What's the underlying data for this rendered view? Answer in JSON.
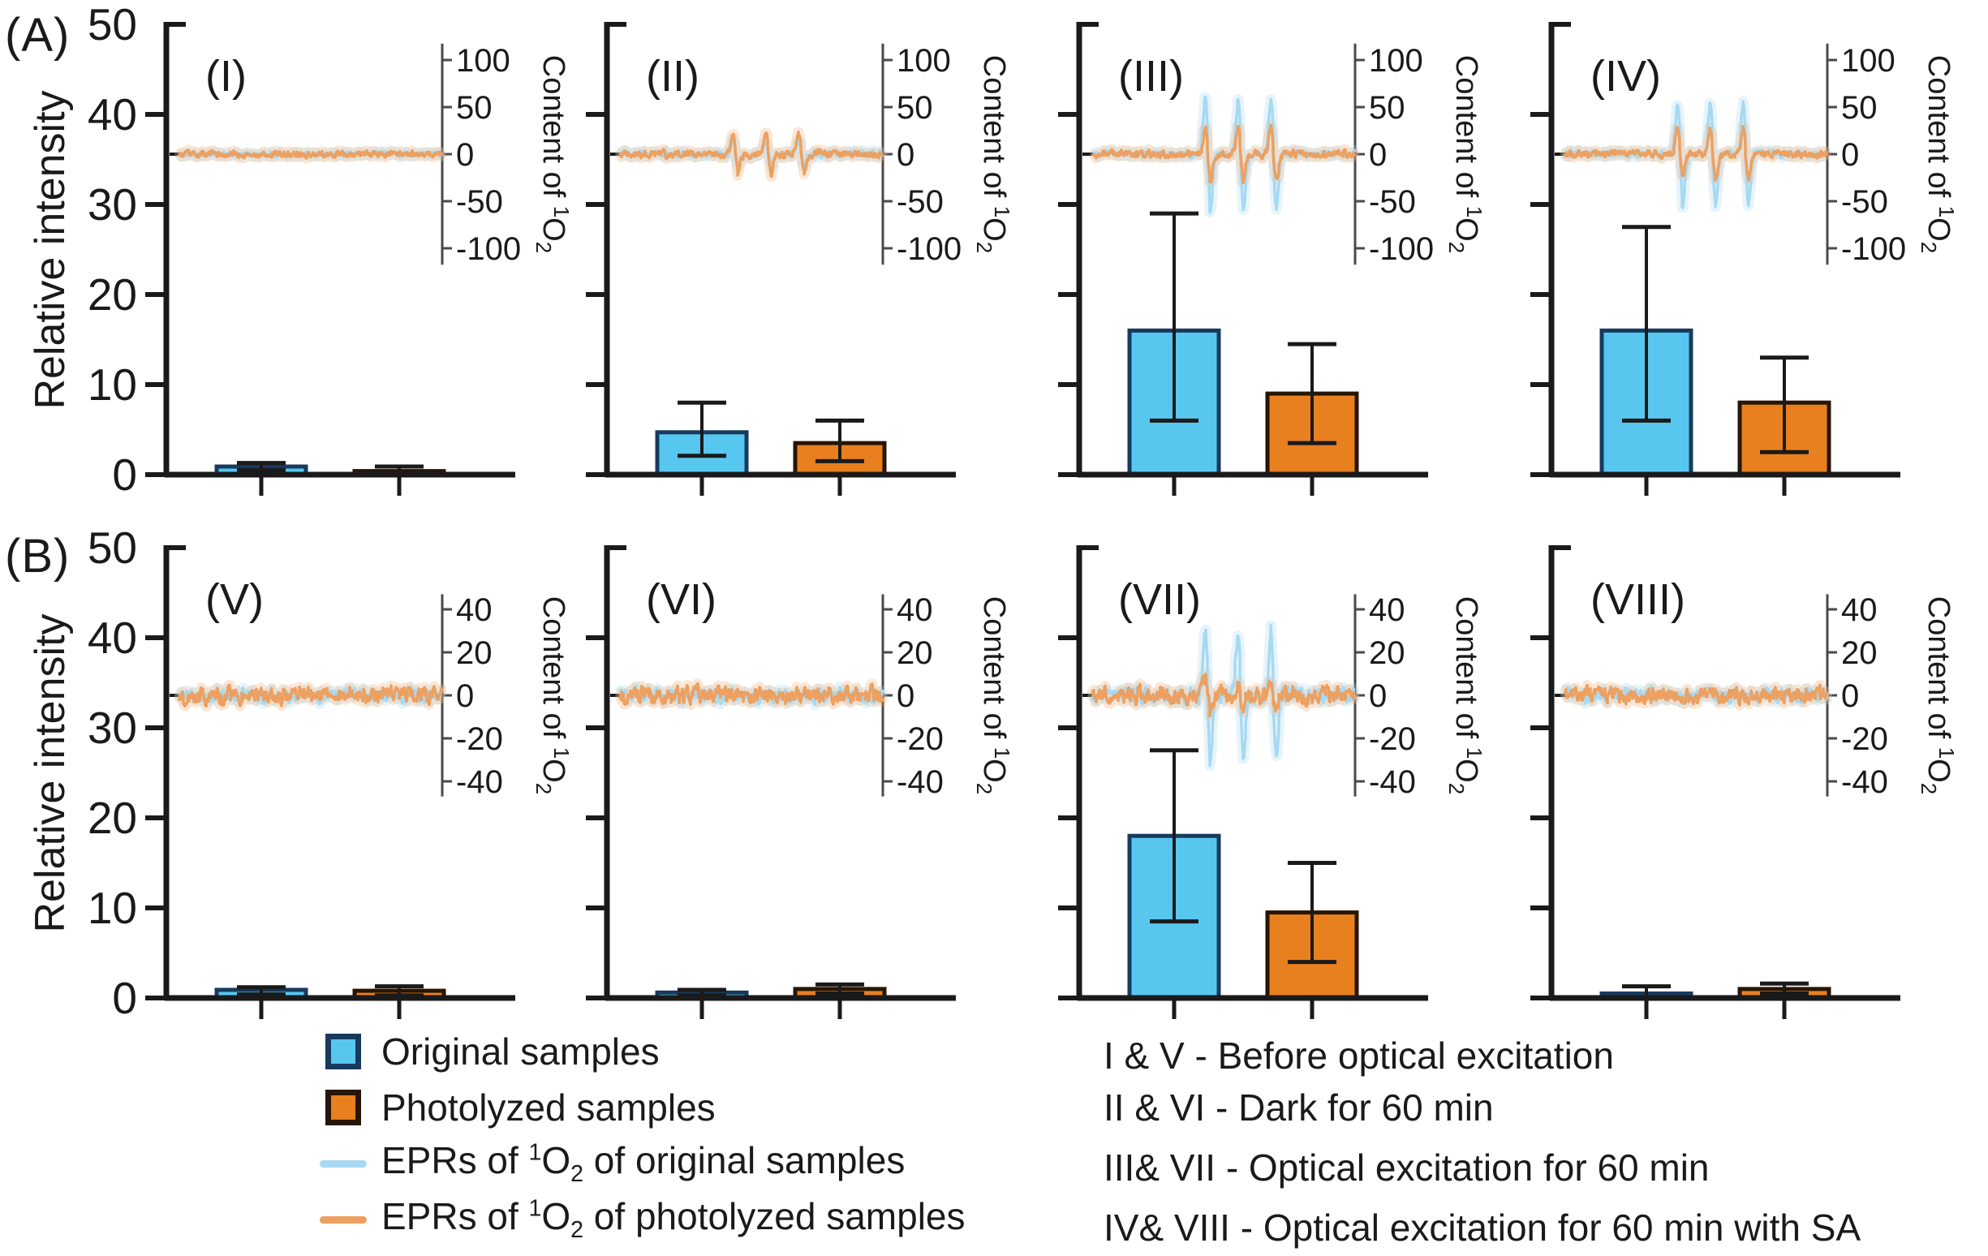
{
  "colors": {
    "bar_blue": "#57c7f0",
    "bar_blue_border": "#173a5e",
    "bar_orange": "#e8801f",
    "bar_orange_border": "#271505",
    "epr_blue": "#a7d9f2",
    "epr_orange": "#eda05f",
    "axis": "#1a1a1a",
    "inset_axis": "#4a4a4a"
  },
  "chart_data": {
    "type": "bar",
    "description": "Eight panels (I-VIII) of relative intensity bars with inset EPR spectra of singlet oxygen",
    "categories": [
      "Original samples",
      "Photolyzed samples"
    ],
    "ylabel": "Relative intensity",
    "inset_ylabel_text": "Content of ¹O₂",
    "inset_label_parts": {
      "pre": "Content of ",
      "sup": "1",
      "base": "O",
      "sub": "2"
    },
    "rows": [
      {
        "label": "(A)",
        "ylim": [
          0,
          50
        ],
        "yticks": [
          0,
          10,
          20,
          30,
          40,
          50
        ],
        "inset_axis": {
          "ticks": [
            100,
            50,
            0,
            -50,
            -100
          ],
          "step": 50
        },
        "panels": [
          {
            "id": "(I)",
            "bars": {
              "original": {
                "value": 0.9,
                "err_up": 0.4,
                "err_down": 0.4
              },
              "photolyzed": {
                "value": 0.4,
                "err_up": 0.5,
                "err_down": 0.3
              }
            },
            "epr": {
              "original": {
                "noise": 4,
                "peak": 0
              },
              "photolyzed": {
                "noise": 5,
                "peak": 0
              }
            }
          },
          {
            "id": "(II)",
            "bars": {
              "original": {
                "value": 4.7,
                "err_up": 3.3,
                "err_down": 2.6
              },
              "photolyzed": {
                "value": 3.5,
                "err_up": 2.5,
                "err_down": 2.0
              }
            },
            "epr": {
              "original": {
                "noise": 5,
                "peak": 14
              },
              "photolyzed": {
                "noise": 6,
                "peak": 22
              }
            }
          },
          {
            "id": "(III)",
            "bars": {
              "original": {
                "value": 16,
                "err_up": 13,
                "err_down": 10
              },
              "photolyzed": {
                "value": 9,
                "err_up": 5.5,
                "err_down": 5.5
              }
            },
            "epr": {
              "original": {
                "noise": 5,
                "peak": 60
              },
              "photolyzed": {
                "noise": 6,
                "peak": 30
              }
            }
          },
          {
            "id": "(IV)",
            "bars": {
              "original": {
                "value": 16,
                "err_up": 11.5,
                "err_down": 10
              },
              "photolyzed": {
                "value": 8,
                "err_up": 5,
                "err_down": 5.5
              }
            },
            "epr": {
              "original": {
                "noise": 5,
                "peak": 55
              },
              "photolyzed": {
                "noise": 6,
                "peak": 28
              }
            }
          }
        ]
      },
      {
        "label": "(B)",
        "ylim": [
          0,
          50
        ],
        "yticks": [
          0,
          10,
          20,
          30,
          40,
          50
        ],
        "inset_axis": {
          "ticks": [
            40,
            20,
            0,
            -20,
            -40
          ],
          "step": 20
        },
        "panels": [
          {
            "id": "(V)",
            "bars": {
              "original": {
                "value": 0.9,
                "err_up": 0.3,
                "err_down": 0.5
              },
              "photolyzed": {
                "value": 0.8,
                "err_up": 0.5,
                "err_down": 0.5
              }
            },
            "epr": {
              "original": {
                "noise": 4.5,
                "peak": 0
              },
              "photolyzed": {
                "noise": 5.5,
                "peak": 0
              }
            }
          },
          {
            "id": "(VI)",
            "bars": {
              "original": {
                "value": 0.6,
                "err_up": 0.3,
                "err_down": 0.3
              },
              "photolyzed": {
                "value": 1.0,
                "err_up": 0.5,
                "err_down": 0.5
              }
            },
            "epr": {
              "original": {
                "noise": 4.5,
                "peak": 0
              },
              "photolyzed": {
                "noise": 5.5,
                "peak": 0
              }
            }
          },
          {
            "id": "(VII)",
            "bars": {
              "original": {
                "value": 18,
                "err_up": 9.5,
                "err_down": 9.5
              },
              "photolyzed": {
                "value": 9.5,
                "err_up": 5.5,
                "err_down": 5.5
              }
            },
            "epr": {
              "original": {
                "noise": 5,
                "peak": 30
              },
              "photolyzed": {
                "noise": 6,
                "peak": 7
              }
            }
          },
          {
            "id": "(VIII)",
            "bars": {
              "original": {
                "value": 0.5,
                "err_up": 0.8,
                "err_down": 0.5
              },
              "photolyzed": {
                "value": 1.0,
                "err_up": 0.6,
                "err_down": 0.5
              }
            },
            "epr": {
              "original": {
                "noise": 4.5,
                "peak": 0
              },
              "photolyzed": {
                "noise": 5.5,
                "peak": 0
              }
            }
          }
        ]
      }
    ]
  },
  "legend": {
    "items": [
      {
        "parts": {
          "pre": "Original samples"
        }
      },
      {
        "parts": {
          "pre": "Photolyzed samples"
        }
      },
      {
        "parts": {
          "pre": "EPRs of ",
          "sup": "1",
          "base": "O",
          "sub": "2",
          "post": " of original samples"
        }
      },
      {
        "parts": {
          "pre": "EPRs of ",
          "sup": "1",
          "base": "O",
          "sub": "2",
          "post": " of photolyzed samples"
        }
      }
    ]
  },
  "conditions": {
    "lines": [
      "I & V - Before optical excitation",
      "II & VI - Dark for 60 min",
      "III& VII - Optical excitation for 60 min",
      "IV& VIII - Optical excitation for 60 min with SA"
    ]
  }
}
